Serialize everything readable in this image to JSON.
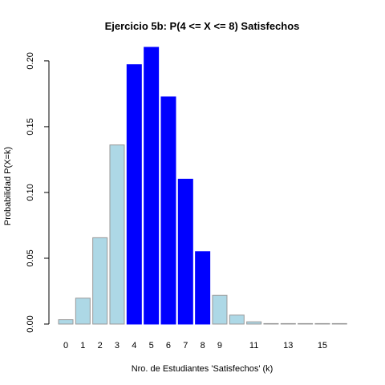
{
  "chart_data": {
    "type": "bar",
    "title": "Ejercicio 5b: P(4 <= X <= 8) Satisfechos",
    "xlabel": "Nro. de Estudiantes 'Satisfechos' (k)",
    "ylabel": "Probabilidad P(X=k)",
    "categories": [
      "0",
      "1",
      "2",
      "3",
      "4",
      "5",
      "6",
      "7",
      "8",
      "9",
      "10",
      "11",
      "12",
      "13",
      "14",
      "15",
      "16"
    ],
    "values": [
      0.0033,
      0.0197,
      0.0656,
      0.1361,
      0.1971,
      0.2103,
      0.1726,
      0.1101,
      0.055,
      0.0218,
      0.0068,
      0.0017,
      0.0003,
      0.0001,
      0.0,
      0.0,
      0.0
    ],
    "highlight_range": [
      4,
      8
    ],
    "x_tick_labels": [
      "0",
      "1",
      "2",
      "3",
      "4",
      "5",
      "6",
      "7",
      "8",
      "9",
      "11",
      "13",
      "15"
    ],
    "y_ticks": [
      0.0,
      0.05,
      0.1,
      0.15,
      0.2
    ],
    "y_tick_labels": [
      "0.00",
      "0.05",
      "0.10",
      "0.15",
      "0.20"
    ],
    "ylim": [
      0,
      0.2103
    ],
    "colors": {
      "highlight_fill": "#0000FF",
      "highlight_border": "#0000FF",
      "base_fill": "#ADD8E6",
      "base_border": "#999999"
    }
  }
}
